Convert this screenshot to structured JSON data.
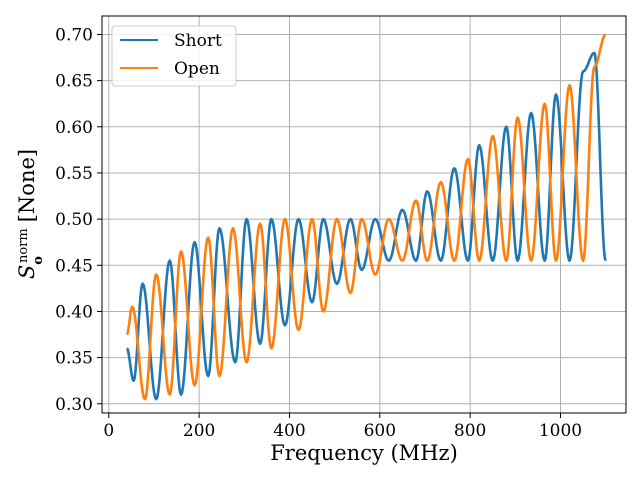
{
  "chart_data": {
    "type": "line",
    "xlabel": "Frequency (MHz)",
    "ylabel": {
      "symbol": "S",
      "subscript": "o",
      "superscript": "norm",
      "unit": "[None]"
    },
    "xlim": [
      -15,
      1145
    ],
    "ylim": [
      0.29,
      0.72
    ],
    "xticks": [
      0,
      200,
      400,
      600,
      800,
      1000
    ],
    "yticks": [
      0.3,
      0.35,
      0.4,
      0.45,
      0.5,
      0.55,
      0.6,
      0.65,
      0.7
    ],
    "grid": true,
    "legend_position": "top-left",
    "series": [
      {
        "name": "Short",
        "color": "#1f77b4",
        "x_range": [
          40,
          1100
        ],
        "period_mhz": 58,
        "description_points": [
          {
            "x": 40,
            "y": 0.36
          },
          {
            "x": 55,
            "y": 0.325
          },
          {
            "x": 75,
            "y": 0.43
          },
          {
            "x": 105,
            "y": 0.305
          },
          {
            "x": 135,
            "y": 0.455
          },
          {
            "x": 160,
            "y": 0.31
          },
          {
            "x": 190,
            "y": 0.475
          },
          {
            "x": 220,
            "y": 0.33
          },
          {
            "x": 245,
            "y": 0.49
          },
          {
            "x": 280,
            "y": 0.345
          },
          {
            "x": 305,
            "y": 0.5
          },
          {
            "x": 335,
            "y": 0.365
          },
          {
            "x": 360,
            "y": 0.5
          },
          {
            "x": 390,
            "y": 0.385
          },
          {
            "x": 420,
            "y": 0.5
          },
          {
            "x": 450,
            "y": 0.41
          },
          {
            "x": 475,
            "y": 0.5
          },
          {
            "x": 505,
            "y": 0.43
          },
          {
            "x": 535,
            "y": 0.5
          },
          {
            "x": 560,
            "y": 0.445
          },
          {
            "x": 590,
            "y": 0.5
          },
          {
            "x": 620,
            "y": 0.455
          },
          {
            "x": 650,
            "y": 0.51
          },
          {
            "x": 680,
            "y": 0.455
          },
          {
            "x": 705,
            "y": 0.53
          },
          {
            "x": 735,
            "y": 0.455
          },
          {
            "x": 765,
            "y": 0.555
          },
          {
            "x": 795,
            "y": 0.455
          },
          {
            "x": 820,
            "y": 0.58
          },
          {
            "x": 850,
            "y": 0.455
          },
          {
            "x": 880,
            "y": 0.6
          },
          {
            "x": 905,
            "y": 0.455
          },
          {
            "x": 935,
            "y": 0.615
          },
          {
            "x": 965,
            "y": 0.455
          },
          {
            "x": 990,
            "y": 0.635
          },
          {
            "x": 1020,
            "y": 0.455
          },
          {
            "x": 1050,
            "y": 0.66
          },
          {
            "x": 1075,
            "y": 0.68
          },
          {
            "x": 1100,
            "y": 0.455
          }
        ]
      },
      {
        "name": "Open",
        "color": "#ff7f0e",
        "x_range": [
          40,
          1100
        ],
        "period_mhz": 58,
        "description_points": [
          {
            "x": 40,
            "y": 0.375
          },
          {
            "x": 52,
            "y": 0.405
          },
          {
            "x": 80,
            "y": 0.305
          },
          {
            "x": 105,
            "y": 0.44
          },
          {
            "x": 135,
            "y": 0.31
          },
          {
            "x": 160,
            "y": 0.465
          },
          {
            "x": 190,
            "y": 0.32
          },
          {
            "x": 220,
            "y": 0.48
          },
          {
            "x": 245,
            "y": 0.33
          },
          {
            "x": 275,
            "y": 0.49
          },
          {
            "x": 305,
            "y": 0.345
          },
          {
            "x": 335,
            "y": 0.495
          },
          {
            "x": 360,
            "y": 0.36
          },
          {
            "x": 390,
            "y": 0.5
          },
          {
            "x": 420,
            "y": 0.38
          },
          {
            "x": 450,
            "y": 0.5
          },
          {
            "x": 475,
            "y": 0.4
          },
          {
            "x": 505,
            "y": 0.5
          },
          {
            "x": 535,
            "y": 0.42
          },
          {
            "x": 560,
            "y": 0.5
          },
          {
            "x": 590,
            "y": 0.44
          },
          {
            "x": 620,
            "y": 0.5
          },
          {
            "x": 650,
            "y": 0.455
          },
          {
            "x": 680,
            "y": 0.52
          },
          {
            "x": 705,
            "y": 0.455
          },
          {
            "x": 735,
            "y": 0.54
          },
          {
            "x": 765,
            "y": 0.455
          },
          {
            "x": 795,
            "y": 0.565
          },
          {
            "x": 820,
            "y": 0.455
          },
          {
            "x": 850,
            "y": 0.59
          },
          {
            "x": 880,
            "y": 0.455
          },
          {
            "x": 905,
            "y": 0.61
          },
          {
            "x": 935,
            "y": 0.455
          },
          {
            "x": 965,
            "y": 0.625
          },
          {
            "x": 990,
            "y": 0.455
          },
          {
            "x": 1020,
            "y": 0.645
          },
          {
            "x": 1050,
            "y": 0.455
          },
          {
            "x": 1075,
            "y": 0.665
          },
          {
            "x": 1100,
            "y": 0.7
          }
        ]
      }
    ]
  }
}
